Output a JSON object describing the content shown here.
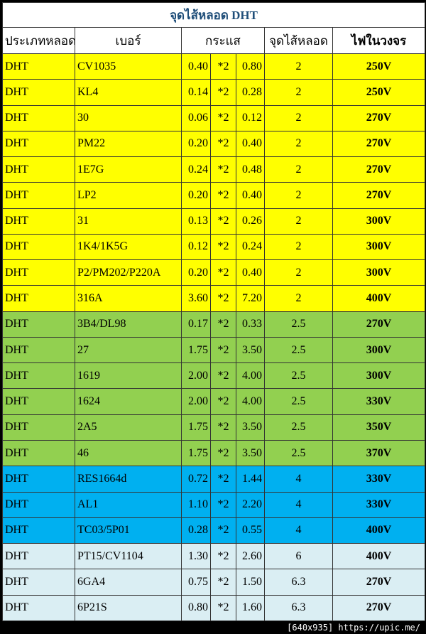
{
  "title": "จุดไส้หลอด DHT",
  "headers": [
    "ประเภทหลอด",
    "เบอร์",
    "กระแส",
    "จุดไส้หลอด",
    "ไฟในวงจร"
  ],
  "colors": {
    "yellow": "#ffff00",
    "green": "#92d050",
    "blue": "#00b0f0",
    "light": "#daeef3",
    "title": "#1f4e79"
  },
  "rows": [
    {
      "type": "DHT",
      "tube": "CV1035",
      "current": "0.40",
      "mult": "*2",
      "total": "0.80",
      "filament": "2",
      "voltage": "250V",
      "color": "yellow"
    },
    {
      "type": "DHT",
      "tube": "KL4",
      "current": "0.14",
      "mult": "*2",
      "total": "0.28",
      "filament": "2",
      "voltage": "250V",
      "color": "yellow"
    },
    {
      "type": "DHT",
      "tube": "30",
      "current": "0.06",
      "mult": "*2",
      "total": "0.12",
      "filament": "2",
      "voltage": "270V",
      "color": "yellow"
    },
    {
      "type": "DHT",
      "tube": "PM22",
      "current": "0.20",
      "mult": "*2",
      "total": "0.40",
      "filament": "2",
      "voltage": "270V",
      "color": "yellow"
    },
    {
      "type": "DHT",
      "tube": "1E7G",
      "current": "0.24",
      "mult": "*2",
      "total": "0.48",
      "filament": "2",
      "voltage": "270V",
      "color": "yellow"
    },
    {
      "type": "DHT",
      "tube": "LP2",
      "current": "0.20",
      "mult": "*2",
      "total": "0.40",
      "filament": "2",
      "voltage": "270V",
      "color": "yellow"
    },
    {
      "type": "DHT",
      "tube": "31",
      "current": "0.13",
      "mult": "*2",
      "total": "0.26",
      "filament": "2",
      "voltage": "300V",
      "color": "yellow"
    },
    {
      "type": "DHT",
      "tube": "1K4/1K5G",
      "current": "0.12",
      "mult": "*2",
      "total": "0.24",
      "filament": "2",
      "voltage": "300V",
      "color": "yellow"
    },
    {
      "type": "DHT",
      "tube": "P2/PM202/P220A",
      "current": "0.20",
      "mult": "*2",
      "total": "0.40",
      "filament": "2",
      "voltage": "300V",
      "color": "yellow"
    },
    {
      "type": "DHT",
      "tube": "316A",
      "current": "3.60",
      "mult": "*2",
      "total": "7.20",
      "filament": "2",
      "voltage": "400V",
      "color": "yellow"
    },
    {
      "type": "DHT",
      "tube": "3B4/DL98",
      "current": "0.17",
      "mult": "*2",
      "total": "0.33",
      "filament": "2.5",
      "voltage": "270V",
      "color": "green"
    },
    {
      "type": "DHT",
      "tube": "27",
      "current": "1.75",
      "mult": "*2",
      "total": "3.50",
      "filament": "2.5",
      "voltage": "300V",
      "color": "green"
    },
    {
      "type": "DHT",
      "tube": "1619",
      "current": "2.00",
      "mult": "*2",
      "total": "4.00",
      "filament": "2.5",
      "voltage": "300V",
      "color": "green"
    },
    {
      "type": "DHT",
      "tube": "1624",
      "current": "2.00",
      "mult": "*2",
      "total": "4.00",
      "filament": "2.5",
      "voltage": "330V",
      "color": "green"
    },
    {
      "type": "DHT",
      "tube": "2A5",
      "current": "1.75",
      "mult": "*2",
      "total": "3.50",
      "filament": "2.5",
      "voltage": "350V",
      "color": "green"
    },
    {
      "type": "DHT",
      "tube": "46",
      "current": "1.75",
      "mult": "*2",
      "total": "3.50",
      "filament": "2.5",
      "voltage": "370V",
      "color": "green"
    },
    {
      "type": "DHT",
      "tube": "RES1664d",
      "current": "0.72",
      "mult": "*2",
      "total": "1.44",
      "filament": "4",
      "voltage": "330V",
      "color": "blue"
    },
    {
      "type": "DHT",
      "tube": "AL1",
      "current": "1.10",
      "mult": "*2",
      "total": "2.20",
      "filament": "4",
      "voltage": "330V",
      "color": "blue"
    },
    {
      "type": "DHT",
      "tube": "TC03/5P01",
      "current": "0.28",
      "mult": "*2",
      "total": "0.55",
      "filament": "4",
      "voltage": "400V",
      "color": "blue"
    },
    {
      "type": "DHT",
      "tube": "PT15/CV1104",
      "current": "1.30",
      "mult": "*2",
      "total": "2.60",
      "filament": "6",
      "voltage": "400V",
      "color": "light"
    },
    {
      "type": "DHT",
      "tube": "6GA4",
      "current": "0.75",
      "mult": "*2",
      "total": "1.50",
      "filament": "6.3",
      "voltage": "270V",
      "color": "light"
    },
    {
      "type": "DHT",
      "tube": "6P21S",
      "current": "0.80",
      "mult": "*2",
      "total": "1.60",
      "filament": "6.3",
      "voltage": "270V",
      "color": "light"
    }
  ],
  "watermark": "[640x935] https://upic.me/"
}
